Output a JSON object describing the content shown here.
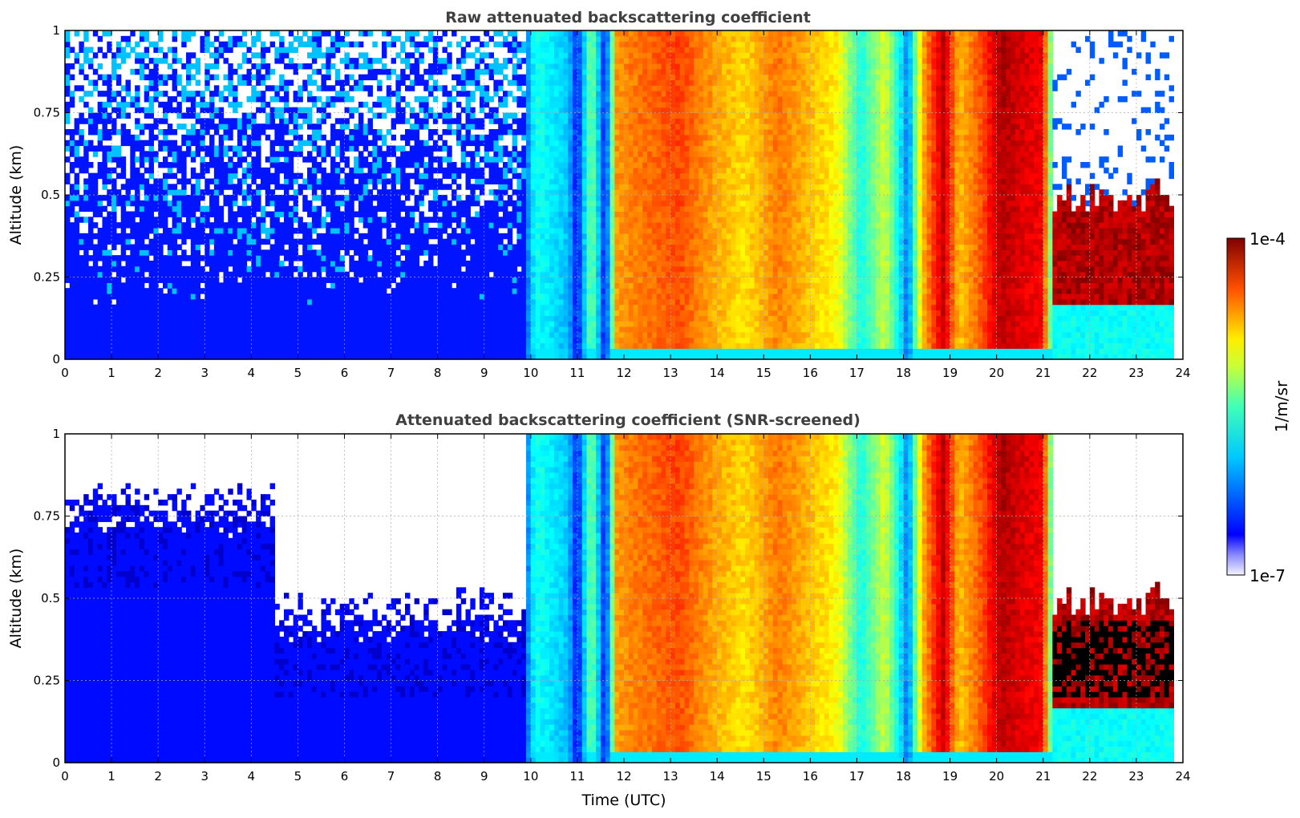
{
  "chart_data": [
    {
      "type": "heatmap",
      "title": "Raw attenuated backscattering coefficient",
      "xlabel": "",
      "ylabel": "Altitude (km)",
      "xlim": [
        0,
        24
      ],
      "ylim": [
        0,
        1
      ],
      "x_ticks": [
        "0",
        "1",
        "2",
        "3",
        "4",
        "5",
        "6",
        "7",
        "8",
        "9",
        "10",
        "11",
        "12",
        "13",
        "14",
        "15",
        "16",
        "17",
        "18",
        "19",
        "20",
        "21",
        "22",
        "23",
        "24"
      ],
      "y_ticks": [
        "0",
        "0.25",
        "0.5",
        "0.75",
        "1"
      ],
      "data_end_hour": 23.8,
      "grid": true,
      "screened": false
    },
    {
      "type": "heatmap",
      "title": "Attenuated backscattering coefficient (SNR-screened)",
      "xlabel": "Time (UTC)",
      "ylabel": "Altitude (km)",
      "xlim": [
        0,
        24
      ],
      "ylim": [
        0,
        1
      ],
      "x_ticks": [
        "0",
        "1",
        "2",
        "3",
        "4",
        "5",
        "6",
        "7",
        "8",
        "9",
        "10",
        "11",
        "12",
        "13",
        "14",
        "15",
        "16",
        "17",
        "18",
        "19",
        "20",
        "21",
        "22",
        "23",
        "24"
      ],
      "y_ticks": [
        "0",
        "0.25",
        "0.5",
        "0.75",
        "1"
      ],
      "data_end_hour": 23.8,
      "grid": true,
      "screened": true
    }
  ],
  "colorbar": {
    "label": "1/m/sr",
    "max_label": "1e-4",
    "min_label": "1e-7",
    "scale": "log",
    "colormap": "jet"
  },
  "profile": {
    "hours": [
      0,
      4.5,
      9.8,
      10.1,
      10.8,
      11.0,
      11.3,
      11.6,
      11.85,
      12.3,
      13.2,
      14.0,
      14.6,
      15.3,
      16.0,
      16.6,
      17.1,
      17.6,
      18.1,
      18.4,
      18.85,
      19.2,
      19.7,
      20.1,
      20.6,
      21.0,
      21.2,
      22.0,
      23.0,
      23.8
    ],
    "intensity": [
      0.1,
      0.1,
      0.12,
      0.38,
      0.3,
      0.12,
      0.5,
      0.12,
      0.72,
      0.75,
      0.8,
      0.7,
      0.65,
      0.75,
      0.68,
      0.62,
      0.38,
      0.58,
      0.22,
      0.68,
      0.93,
      0.68,
      0.8,
      0.95,
      0.9,
      0.88,
      0.36,
      0.36,
      0.34,
      0.36
    ]
  }
}
